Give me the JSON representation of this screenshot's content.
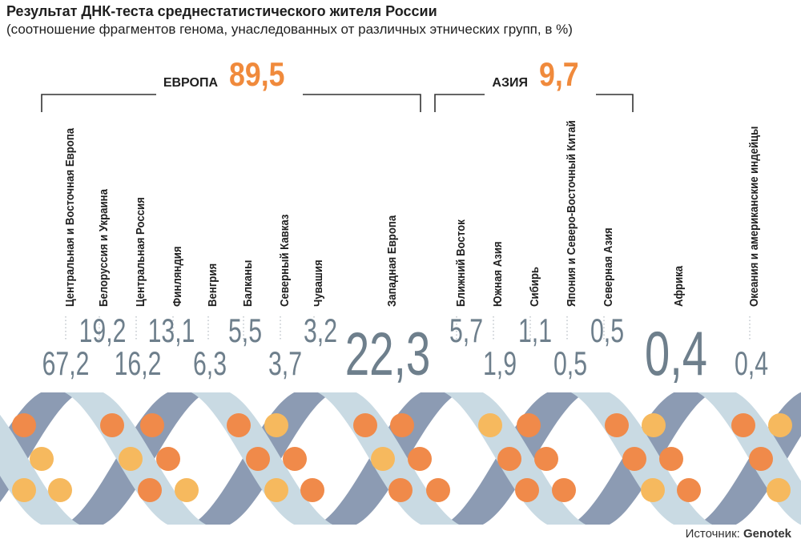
{
  "title": "Результат ДНК-теста среднестатистического жителя России",
  "subtitle": "(соотношение фрагментов генома, унаследованных от различных этнических групп, в %)",
  "source_label": "Источник:",
  "source_name": "Genotek",
  "colors": {
    "group_value": "#f08a3c",
    "value_text": "#6e7f8c",
    "label_text": "#1f1f1f",
    "bracket": "#333333",
    "helix_back": "#8c9bb3",
    "helix_front": "#c9dae3",
    "dot_dark": "#f08a4a",
    "dot_light": "#f6b95e",
    "dotted_leader": "#b0b8bf"
  },
  "chart_data": {
    "type": "bar",
    "groups": [
      {
        "name": "ЕВРОПА",
        "value": "89,5"
      },
      {
        "name": "АЗИЯ",
        "value": "9,7"
      }
    ],
    "categories": [
      {
        "label": "Центральная и Восточная Европа",
        "value": "67,2",
        "group": "ЕВРОПА"
      },
      {
        "label": "Белоруссия и Украина",
        "value": "19,2",
        "group": "ЕВРОПА"
      },
      {
        "label": "Центральная Россия",
        "value": "16,2",
        "group": "ЕВРОПА"
      },
      {
        "label": "Финляндия",
        "value": "13,1",
        "group": "ЕВРОПА"
      },
      {
        "label": "Венгрия",
        "value": "6,3",
        "group": "ЕВРОПА"
      },
      {
        "label": "Балканы",
        "value": "5,5",
        "group": "ЕВРОПА"
      },
      {
        "label": "Северный Кавказ",
        "value": "3,7",
        "group": "ЕВРОПА"
      },
      {
        "label": "Чувашия",
        "value": "3,2",
        "group": "ЕВРОПА"
      },
      {
        "label": "Западная Европа",
        "value": "22,3",
        "group": "ЕВРОПА"
      },
      {
        "label": "Ближний Восток",
        "value": "5,7",
        "group": "АЗИЯ"
      },
      {
        "label": "Южная Азия",
        "value": "1,9",
        "group": "АЗИЯ"
      },
      {
        "label": "Сибирь",
        "value": "1,1",
        "group": "АЗИЯ"
      },
      {
        "label": "Япония и Северо-Восточный Китай",
        "value": "0,5",
        "group": "АЗИЯ"
      },
      {
        "label": "Северная Азия",
        "value": "0,5",
        "group": "АЗИЯ"
      },
      {
        "label": "Африка",
        "value": "0,4",
        "group": ""
      },
      {
        "label": "Океания и американские индейцы",
        "value": "0,4",
        "group": ""
      }
    ]
  }
}
